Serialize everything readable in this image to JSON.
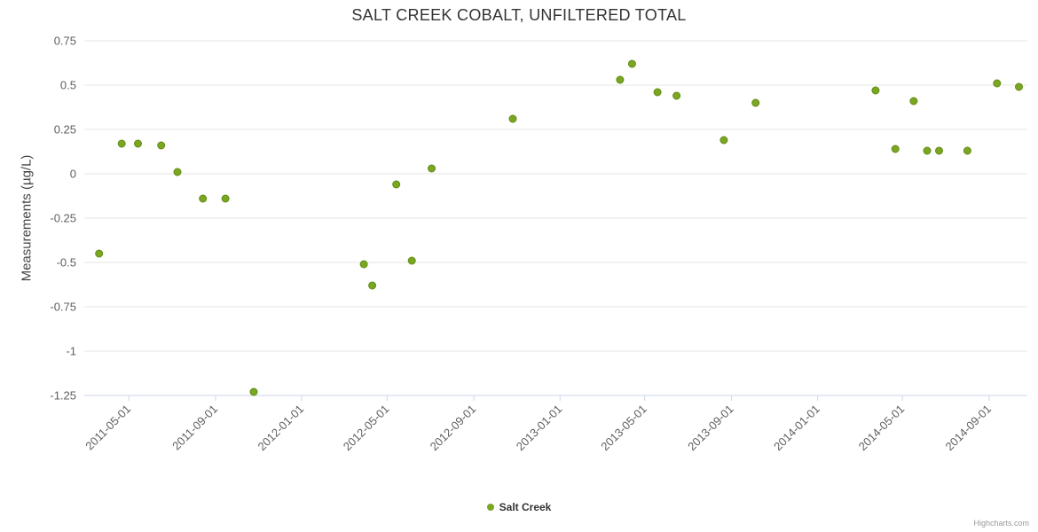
{
  "title": "SALT CREEK COBALT, UNFILTERED TOTAL",
  "y_axis_title": "Measurements (µg/L)",
  "legend": {
    "items": [
      {
        "label": "Salt Creek",
        "marker_color": "#7aa622"
      }
    ]
  },
  "credits": "Highcharts.com",
  "chart_data": {
    "type": "scatter",
    "title": "SALT CREEK COBALT, UNFILTERED TOTAL",
    "xlabel": "",
    "ylabel": "Measurements (µg/L)",
    "ylim": [
      -1.25,
      0.75
    ],
    "yticks": [
      0.75,
      0.5,
      0.25,
      0,
      -0.25,
      -0.5,
      -0.75,
      -1,
      -1.25
    ],
    "xlim": [
      "2011-02-27",
      "2014-10-25"
    ],
    "xticks": [
      "2011-05-01",
      "2011-09-01",
      "2012-01-01",
      "2012-05-01",
      "2012-09-01",
      "2013-01-01",
      "2013-05-01",
      "2013-09-01",
      "2014-01-01",
      "2014-05-01",
      "2014-09-01"
    ],
    "grid": "horizontal",
    "legend_position": "bottom-center",
    "colors": {
      "grid": "#e6e6e6",
      "axis": "#ccd6eb",
      "labels": "#606060",
      "title": "#333333"
    },
    "series": [
      {
        "name": "Salt Creek",
        "color": "#7aa622",
        "marker_stroke": "#618c14",
        "points": [
          [
            "2011-03-20",
            -0.45
          ],
          [
            "2011-04-21",
            0.17
          ],
          [
            "2011-05-14",
            0.17
          ],
          [
            "2011-06-16",
            0.16
          ],
          [
            "2011-07-09",
            0.01
          ],
          [
            "2011-08-14",
            -0.14
          ],
          [
            "2011-09-15",
            -0.14
          ],
          [
            "2011-10-25",
            -1.23
          ],
          [
            "2012-03-29",
            -0.51
          ],
          [
            "2012-04-10",
            -0.63
          ],
          [
            "2012-05-14",
            -0.06
          ],
          [
            "2012-06-05",
            -0.49
          ],
          [
            "2012-07-03",
            0.03
          ],
          [
            "2012-10-26",
            0.31
          ],
          [
            "2013-03-27",
            0.53
          ],
          [
            "2013-04-13",
            0.62
          ],
          [
            "2013-05-19",
            0.46
          ],
          [
            "2013-06-15",
            0.44
          ],
          [
            "2013-08-21",
            0.19
          ],
          [
            "2013-10-05",
            0.4
          ],
          [
            "2014-03-24",
            0.47
          ],
          [
            "2014-04-21",
            0.14
          ],
          [
            "2014-05-17",
            0.41
          ],
          [
            "2014-06-05",
            0.13
          ],
          [
            "2014-06-22",
            0.13
          ],
          [
            "2014-08-01",
            0.13
          ],
          [
            "2014-09-12",
            0.51
          ],
          [
            "2014-10-13",
            0.49
          ]
        ]
      }
    ]
  }
}
